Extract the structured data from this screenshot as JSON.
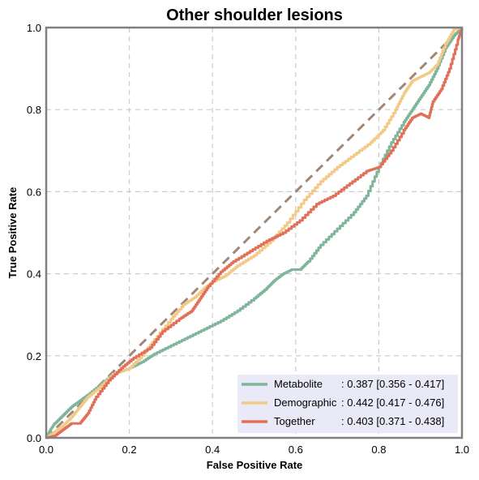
{
  "chart_data": {
    "type": "line",
    "title": "Other shoulder lesions",
    "xlabel": "False Positive Rate",
    "ylabel": "True Positive Rate",
    "xlim": [
      0,
      1
    ],
    "ylim": [
      0,
      1
    ],
    "xticks": [
      "0.0",
      "0.2",
      "0.4",
      "0.6",
      "0.8",
      "1.0"
    ],
    "yticks": [
      "0.0",
      "0.2",
      "0.4",
      "0.6",
      "0.8",
      "1.0"
    ],
    "grid": true,
    "legend_position": "lower-right",
    "legend_bg": "#e9e9f7",
    "diagonal": {
      "color": "#a08878",
      "x": [
        0,
        1
      ],
      "y": [
        0,
        1
      ]
    },
    "series": [
      {
        "name": "Metabolite",
        "auc_label": ": 0.387 [0.356 - 0.417]",
        "color": "#7fb59a",
        "x": [
          0,
          0.01,
          0.02,
          0.04,
          0.06,
          0.08,
          0.1,
          0.13,
          0.16,
          0.2,
          0.23,
          0.26,
          0.3,
          0.34,
          0.38,
          0.42,
          0.46,
          0.5,
          0.53,
          0.55,
          0.57,
          0.59,
          0.61,
          0.63,
          0.66,
          0.7,
          0.74,
          0.77,
          0.8,
          0.83,
          0.86,
          0.88,
          0.9,
          0.92,
          0.94,
          0.96,
          0.98,
          1.0
        ],
        "y": [
          0,
          0.02,
          0.035,
          0.055,
          0.075,
          0.09,
          0.105,
          0.13,
          0.155,
          0.17,
          0.185,
          0.205,
          0.225,
          0.245,
          0.265,
          0.285,
          0.31,
          0.34,
          0.365,
          0.385,
          0.4,
          0.41,
          0.41,
          0.43,
          0.47,
          0.51,
          0.55,
          0.59,
          0.66,
          0.72,
          0.77,
          0.8,
          0.83,
          0.86,
          0.9,
          0.95,
          0.98,
          1.0
        ]
      },
      {
        "name": "Demographic",
        "auc_label": ": 0.442 [0.417 - 0.476]",
        "color": "#f2c987",
        "x": [
          0,
          0.02,
          0.04,
          0.06,
          0.08,
          0.1,
          0.13,
          0.16,
          0.2,
          0.23,
          0.26,
          0.3,
          0.33,
          0.36,
          0.38,
          0.4,
          0.43,
          0.46,
          0.5,
          0.54,
          0.58,
          0.62,
          0.66,
          0.7,
          0.74,
          0.78,
          0.81,
          0.84,
          0.86,
          0.88,
          0.9,
          0.92,
          0.94,
          0.96,
          0.98,
          1.0
        ],
        "y": [
          0,
          0.015,
          0.03,
          0.05,
          0.075,
          0.1,
          0.125,
          0.155,
          0.17,
          0.2,
          0.24,
          0.29,
          0.325,
          0.345,
          0.365,
          0.38,
          0.395,
          0.42,
          0.445,
          0.48,
          0.525,
          0.58,
          0.625,
          0.66,
          0.69,
          0.72,
          0.75,
          0.8,
          0.84,
          0.87,
          0.88,
          0.89,
          0.91,
          0.96,
          0.995,
          1.0
        ]
      },
      {
        "name": "Together",
        "auc_label": ": 0.403 [0.371 - 0.438]",
        "color": "#e07059",
        "x": [
          0,
          0.02,
          0.04,
          0.06,
          0.08,
          0.1,
          0.12,
          0.15,
          0.18,
          0.21,
          0.25,
          0.28,
          0.32,
          0.35,
          0.37,
          0.39,
          0.42,
          0.45,
          0.49,
          0.53,
          0.57,
          0.61,
          0.65,
          0.69,
          0.73,
          0.77,
          0.8,
          0.83,
          0.86,
          0.88,
          0.9,
          0.92,
          0.93,
          0.95,
          0.97,
          0.99,
          1.0
        ],
        "y": [
          0,
          0.005,
          0.02,
          0.035,
          0.035,
          0.06,
          0.1,
          0.14,
          0.17,
          0.195,
          0.22,
          0.26,
          0.29,
          0.31,
          0.34,
          0.37,
          0.405,
          0.43,
          0.455,
          0.48,
          0.5,
          0.53,
          0.57,
          0.59,
          0.62,
          0.65,
          0.66,
          0.7,
          0.75,
          0.78,
          0.79,
          0.78,
          0.82,
          0.85,
          0.9,
          0.97,
          1.0
        ]
      }
    ]
  }
}
